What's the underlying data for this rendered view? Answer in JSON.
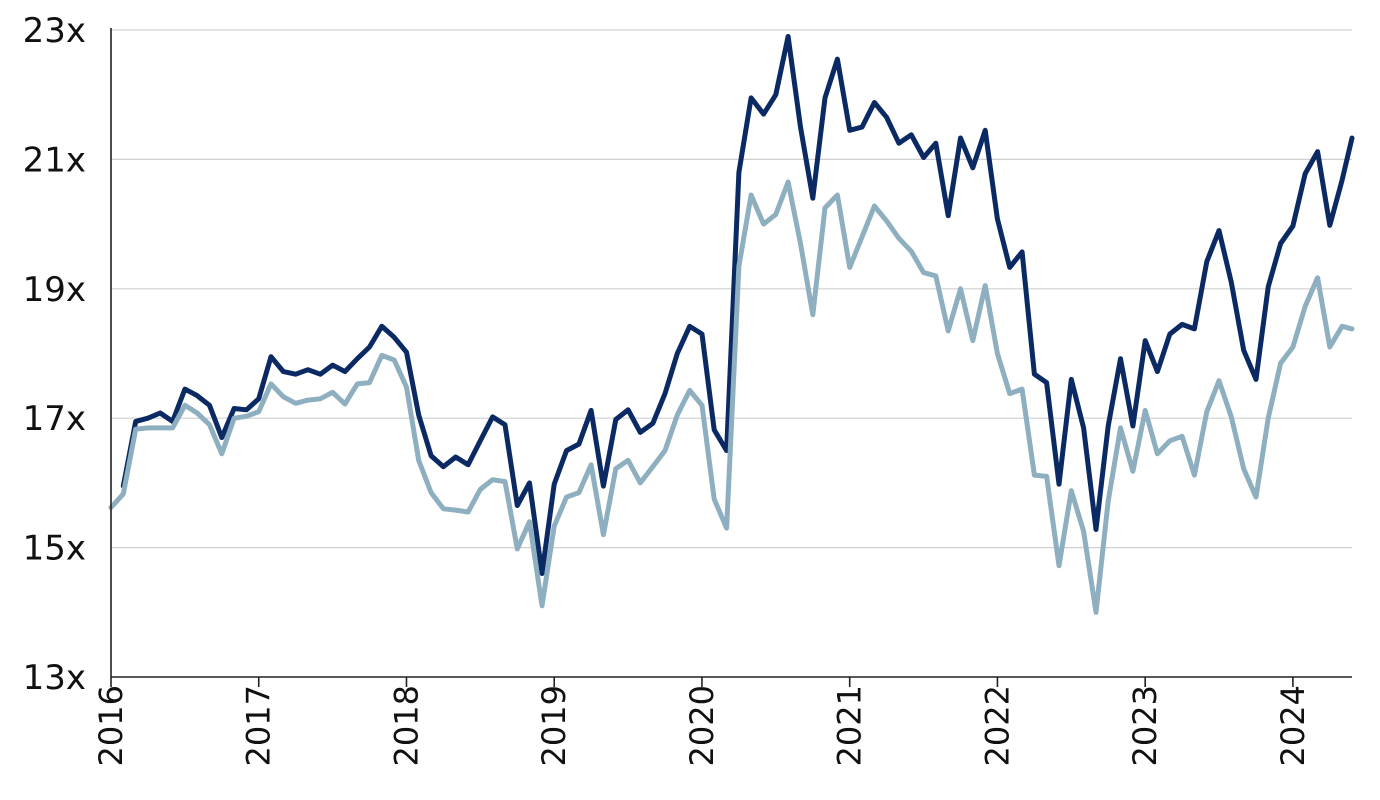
{
  "chart_data": {
    "type": "line",
    "title": "",
    "xlabel": "",
    "ylabel": "",
    "xlim": [
      2016.0,
      2024.4
    ],
    "ylim": [
      13,
      23
    ],
    "y_ticks": [
      13,
      15,
      17,
      19,
      21,
      23
    ],
    "y_tick_labels": [
      "13x",
      "15x",
      "17x",
      "19x",
      "21x",
      "23x"
    ],
    "x_ticks": [
      2016,
      2017,
      2018,
      2019,
      2020,
      2021,
      2022,
      2023,
      2024
    ],
    "x_tick_labels": [
      "2016",
      "2017",
      "2018",
      "2019",
      "2020",
      "2021",
      "2022",
      "2023",
      "2024"
    ],
    "grid": true,
    "legend": "none",
    "series": [
      {
        "color": "#0b2a63",
        "points": [
          [
            2016.083,
            15.95
          ],
          [
            2016.167,
            16.95
          ],
          [
            2016.25,
            17.0
          ],
          [
            2016.333,
            17.08
          ],
          [
            2016.417,
            16.95
          ],
          [
            2016.5,
            17.45
          ],
          [
            2016.583,
            17.35
          ],
          [
            2016.667,
            17.2
          ],
          [
            2016.75,
            16.7
          ],
          [
            2016.833,
            17.15
          ],
          [
            2016.917,
            17.13
          ],
          [
            2017.0,
            17.3
          ],
          [
            2017.083,
            17.95
          ],
          [
            2017.167,
            17.72
          ],
          [
            2017.25,
            17.68
          ],
          [
            2017.333,
            17.75
          ],
          [
            2017.417,
            17.68
          ],
          [
            2017.5,
            17.82
          ],
          [
            2017.583,
            17.72
          ],
          [
            2017.667,
            17.92
          ],
          [
            2017.75,
            18.1
          ],
          [
            2017.833,
            18.42
          ],
          [
            2017.917,
            18.25
          ],
          [
            2018.0,
            18.02
          ],
          [
            2018.083,
            17.05
          ],
          [
            2018.167,
            16.42
          ],
          [
            2018.25,
            16.25
          ],
          [
            2018.333,
            16.4
          ],
          [
            2018.417,
            16.28
          ],
          [
            2018.5,
            16.65
          ],
          [
            2018.583,
            17.02
          ],
          [
            2018.667,
            16.9
          ],
          [
            2018.75,
            15.65
          ],
          [
            2018.833,
            16.0
          ],
          [
            2018.917,
            14.6
          ],
          [
            2019.0,
            15.98
          ],
          [
            2019.083,
            16.5
          ],
          [
            2019.167,
            16.6
          ],
          [
            2019.25,
            17.12
          ],
          [
            2019.333,
            15.95
          ],
          [
            2019.417,
            16.98
          ],
          [
            2019.5,
            17.13
          ],
          [
            2019.583,
            16.78
          ],
          [
            2019.667,
            16.92
          ],
          [
            2019.75,
            17.38
          ],
          [
            2019.833,
            18.0
          ],
          [
            2019.917,
            18.42
          ],
          [
            2020.0,
            18.3
          ],
          [
            2020.083,
            16.82
          ],
          [
            2020.167,
            16.5
          ],
          [
            2020.25,
            20.8
          ],
          [
            2020.333,
            21.95
          ],
          [
            2020.417,
            21.7
          ],
          [
            2020.5,
            22.0
          ],
          [
            2020.583,
            22.9
          ],
          [
            2020.667,
            21.5
          ],
          [
            2020.75,
            20.4
          ],
          [
            2020.833,
            21.95
          ],
          [
            2020.917,
            22.55
          ],
          [
            2021.0,
            21.45
          ],
          [
            2021.083,
            21.5
          ],
          [
            2021.167,
            21.88
          ],
          [
            2021.25,
            21.65
          ],
          [
            2021.333,
            21.25
          ],
          [
            2021.417,
            21.38
          ],
          [
            2021.5,
            21.03
          ],
          [
            2021.583,
            21.25
          ],
          [
            2021.667,
            20.13
          ],
          [
            2021.75,
            21.33
          ],
          [
            2021.833,
            20.87
          ],
          [
            2021.917,
            21.45
          ],
          [
            2022.0,
            20.08
          ],
          [
            2022.083,
            19.33
          ],
          [
            2022.167,
            19.57
          ],
          [
            2022.25,
            17.68
          ],
          [
            2022.333,
            17.55
          ],
          [
            2022.417,
            15.98
          ],
          [
            2022.5,
            17.6
          ],
          [
            2022.583,
            16.85
          ],
          [
            2022.667,
            15.28
          ],
          [
            2022.75,
            16.88
          ],
          [
            2022.833,
            17.92
          ],
          [
            2022.917,
            16.88
          ],
          [
            2023.0,
            18.2
          ],
          [
            2023.083,
            17.72
          ],
          [
            2023.167,
            18.3
          ],
          [
            2023.25,
            18.45
          ],
          [
            2023.333,
            18.38
          ],
          [
            2023.417,
            19.42
          ],
          [
            2023.5,
            19.9
          ],
          [
            2023.583,
            19.1
          ],
          [
            2023.667,
            18.05
          ],
          [
            2023.75,
            17.6
          ],
          [
            2023.833,
            19.03
          ],
          [
            2023.917,
            19.7
          ],
          [
            2024.0,
            19.97
          ],
          [
            2024.083,
            20.78
          ],
          [
            2024.167,
            21.12
          ],
          [
            2024.25,
            19.98
          ],
          [
            2024.333,
            20.68
          ],
          [
            2024.4,
            21.33
          ]
        ]
      },
      {
        "color": "#8eafc0",
        "points": [
          [
            2016.0,
            15.62
          ],
          [
            2016.083,
            15.83
          ],
          [
            2016.167,
            16.83
          ],
          [
            2016.25,
            16.85
          ],
          [
            2016.333,
            16.85
          ],
          [
            2016.417,
            16.85
          ],
          [
            2016.5,
            17.2
          ],
          [
            2016.583,
            17.08
          ],
          [
            2016.667,
            16.9
          ],
          [
            2016.75,
            16.45
          ],
          [
            2016.833,
            17.0
          ],
          [
            2016.917,
            17.03
          ],
          [
            2017.0,
            17.1
          ],
          [
            2017.083,
            17.53
          ],
          [
            2017.167,
            17.33
          ],
          [
            2017.25,
            17.23
          ],
          [
            2017.333,
            17.28
          ],
          [
            2017.417,
            17.3
          ],
          [
            2017.5,
            17.4
          ],
          [
            2017.583,
            17.22
          ],
          [
            2017.667,
            17.53
          ],
          [
            2017.75,
            17.55
          ],
          [
            2017.833,
            17.97
          ],
          [
            2017.917,
            17.9
          ],
          [
            2018.0,
            17.48
          ],
          [
            2018.083,
            16.35
          ],
          [
            2018.167,
            15.85
          ],
          [
            2018.25,
            15.6
          ],
          [
            2018.333,
            15.58
          ],
          [
            2018.417,
            15.55
          ],
          [
            2018.5,
            15.9
          ],
          [
            2018.583,
            16.05
          ],
          [
            2018.667,
            16.02
          ],
          [
            2018.75,
            14.98
          ],
          [
            2018.833,
            15.4
          ],
          [
            2018.917,
            14.1
          ],
          [
            2019.0,
            15.33
          ],
          [
            2019.083,
            15.78
          ],
          [
            2019.167,
            15.85
          ],
          [
            2019.25,
            16.28
          ],
          [
            2019.333,
            15.2
          ],
          [
            2019.417,
            16.22
          ],
          [
            2019.5,
            16.35
          ],
          [
            2019.583,
            16.0
          ],
          [
            2019.667,
            16.25
          ],
          [
            2019.75,
            16.5
          ],
          [
            2019.833,
            17.05
          ],
          [
            2019.917,
            17.43
          ],
          [
            2020.0,
            17.2
          ],
          [
            2020.083,
            15.75
          ],
          [
            2020.167,
            15.3
          ],
          [
            2020.25,
            19.35
          ],
          [
            2020.333,
            20.45
          ],
          [
            2020.417,
            20.0
          ],
          [
            2020.5,
            20.15
          ],
          [
            2020.583,
            20.65
          ],
          [
            2020.667,
            19.7
          ],
          [
            2020.75,
            18.6
          ],
          [
            2020.833,
            20.25
          ],
          [
            2020.917,
            20.45
          ],
          [
            2021.0,
            19.33
          ],
          [
            2021.083,
            19.8
          ],
          [
            2021.167,
            20.28
          ],
          [
            2021.25,
            20.05
          ],
          [
            2021.333,
            19.78
          ],
          [
            2021.417,
            19.58
          ],
          [
            2021.5,
            19.25
          ],
          [
            2021.583,
            19.2
          ],
          [
            2021.667,
            18.35
          ],
          [
            2021.75,
            19.0
          ],
          [
            2021.833,
            18.2
          ],
          [
            2021.917,
            19.05
          ],
          [
            2022.0,
            18.0
          ],
          [
            2022.083,
            17.38
          ],
          [
            2022.167,
            17.45
          ],
          [
            2022.25,
            16.12
          ],
          [
            2022.333,
            16.1
          ],
          [
            2022.417,
            14.72
          ],
          [
            2022.5,
            15.88
          ],
          [
            2022.583,
            15.25
          ],
          [
            2022.667,
            14.0
          ],
          [
            2022.75,
            15.72
          ],
          [
            2022.833,
            16.85
          ],
          [
            2022.917,
            16.18
          ],
          [
            2023.0,
            17.12
          ],
          [
            2023.083,
            16.45
          ],
          [
            2023.167,
            16.65
          ],
          [
            2023.25,
            16.72
          ],
          [
            2023.333,
            16.12
          ],
          [
            2023.417,
            17.1
          ],
          [
            2023.5,
            17.58
          ],
          [
            2023.583,
            17.02
          ],
          [
            2023.667,
            16.22
          ],
          [
            2023.75,
            15.78
          ],
          [
            2023.833,
            17.0
          ],
          [
            2023.917,
            17.85
          ],
          [
            2024.0,
            18.1
          ],
          [
            2024.083,
            18.73
          ],
          [
            2024.167,
            19.17
          ],
          [
            2024.25,
            18.1
          ],
          [
            2024.333,
            18.42
          ],
          [
            2024.4,
            18.38
          ]
        ]
      }
    ]
  }
}
